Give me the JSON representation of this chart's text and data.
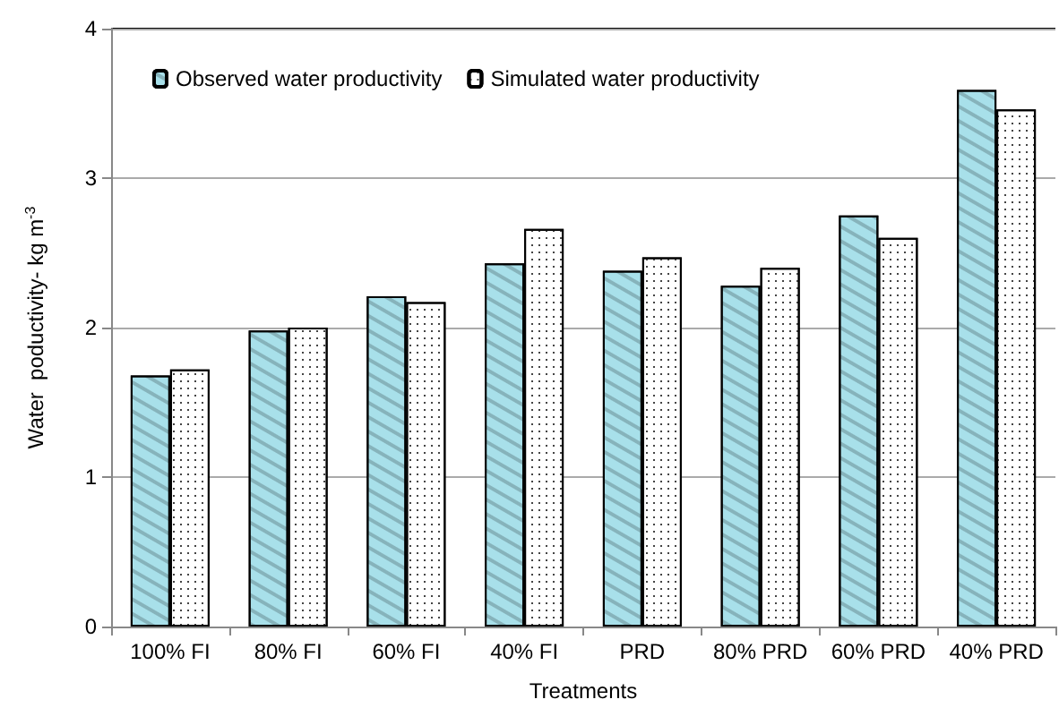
{
  "chart_data": {
    "type": "bar",
    "xlabel": "Treatments",
    "ylabel": "Water  poductivity- kg m$^{-3}$",
    "categories": [
      "100% FI",
      "80% FI",
      "60% FI",
      "40% FI",
      "PRD",
      "80% PRD",
      "60% PRD",
      "40% PRD"
    ],
    "series": [
      {
        "name": "Observed water productivity",
        "color": "#a8e0ea",
        "values": [
          1.68,
          1.98,
          2.21,
          2.43,
          2.38,
          2.28,
          2.75,
          3.59
        ]
      },
      {
        "name": "Simulated water productivity",
        "color": "#ffffff",
        "values": [
          1.72,
          2.0,
          2.17,
          2.66,
          2.47,
          2.4,
          2.6,
          3.46
        ]
      }
    ],
    "ylim": [
      0,
      4
    ],
    "yticks": [
      0,
      1,
      2,
      3,
      4
    ],
    "grid": "y",
    "legend": "top left"
  }
}
